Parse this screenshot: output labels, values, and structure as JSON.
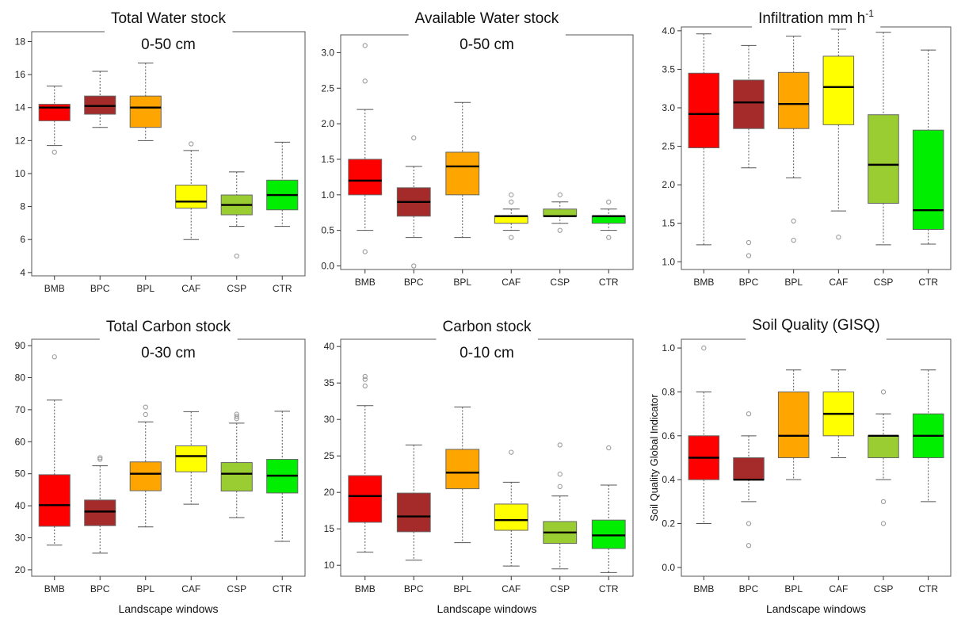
{
  "chart_data": [
    {
      "type": "boxplot",
      "title": "Total Water stock",
      "subtitle": "0-50 cm",
      "xlabel": "",
      "ylabel": "",
      "ylim": [
        3.8,
        18.6
      ],
      "yticks": [
        4,
        6,
        8,
        10,
        12,
        14,
        16,
        18
      ],
      "categories": [
        "BMB",
        "BPC",
        "BPL",
        "CAF",
        "CSP",
        "CTR"
      ],
      "boxes": [
        {
          "min": 11.7,
          "q1": 13.2,
          "median": 14.0,
          "q3": 14.2,
          "max": 15.3,
          "outliers": [
            11.3
          ]
        },
        {
          "min": 12.8,
          "q1": 13.6,
          "median": 14.1,
          "q3": 14.7,
          "max": 16.2,
          "outliers": []
        },
        {
          "min": 12.0,
          "q1": 12.8,
          "median": 14.0,
          "q3": 14.7,
          "max": 16.7,
          "outliers": []
        },
        {
          "min": 6.0,
          "q1": 7.9,
          "median": 8.3,
          "q3": 9.3,
          "max": 11.4,
          "outliers": [
            11.8
          ]
        },
        {
          "min": 6.8,
          "q1": 7.5,
          "median": 8.1,
          "q3": 8.7,
          "max": 10.1,
          "outliers": [
            5.0
          ]
        },
        {
          "min": 6.8,
          "q1": 7.8,
          "median": 8.7,
          "q3": 9.6,
          "max": 11.9,
          "outliers": []
        }
      ]
    },
    {
      "type": "boxplot",
      "title": "Available Water stock",
      "subtitle": "0-50 cm",
      "xlabel": "",
      "ylabel": "",
      "ylim": [
        -0.05,
        3.25
      ],
      "yticks": [
        "0.0",
        "0.5",
        "1.0",
        "1.5",
        "2.0",
        "2.5",
        "3.0"
      ],
      "categories": [
        "BMB",
        "BPC",
        "BPL",
        "CAF",
        "CSP",
        "CTR"
      ],
      "boxes": [
        {
          "min": 0.5,
          "q1": 1.0,
          "median": 1.2,
          "q3": 1.5,
          "max": 2.2,
          "outliers": [
            3.1,
            2.6,
            0.2
          ]
        },
        {
          "min": 0.4,
          "q1": 0.7,
          "median": 0.9,
          "q3": 1.1,
          "max": 1.4,
          "outliers": [
            1.8,
            0.0
          ]
        },
        {
          "min": 0.4,
          "q1": 1.0,
          "median": 1.4,
          "q3": 1.6,
          "max": 2.3,
          "outliers": []
        },
        {
          "min": 0.5,
          "q1": 0.6,
          "median": 0.7,
          "q3": 0.7,
          "max": 0.8,
          "outliers": [
            1.0,
            0.9,
            0.4
          ]
        },
        {
          "min": 0.6,
          "q1": 0.7,
          "median": 0.7,
          "q3": 0.8,
          "max": 0.9,
          "outliers": [
            1.0,
            0.5
          ]
        },
        {
          "min": 0.5,
          "q1": 0.6,
          "median": 0.7,
          "q3": 0.7,
          "max": 0.8,
          "outliers": [
            0.9,
            0.4
          ]
        }
      ]
    },
    {
      "type": "boxplot",
      "title": "Infiltration mm h",
      "title_superscript": "-1",
      "subtitle": "",
      "xlabel": "",
      "ylabel": "",
      "ylim": [
        0.9,
        4.05
      ],
      "yticks": [
        "1.0",
        "1.5",
        "2.0",
        "2.5",
        "3.0",
        "3.5",
        "4.0"
      ],
      "categories": [
        "BMB",
        "BPC",
        "BPL",
        "CAF",
        "CSP",
        "CTR"
      ],
      "boxes": [
        {
          "min": 1.22,
          "q1": 2.48,
          "median": 2.92,
          "q3": 3.45,
          "max": 3.96,
          "outliers": []
        },
        {
          "min": 2.22,
          "q1": 2.73,
          "median": 3.07,
          "q3": 3.36,
          "max": 3.81,
          "outliers": [
            1.25,
            1.08
          ]
        },
        {
          "min": 2.09,
          "q1": 2.73,
          "median": 3.05,
          "q3": 3.46,
          "max": 3.93,
          "outliers": [
            1.53,
            1.28
          ]
        },
        {
          "min": 1.66,
          "q1": 2.78,
          "median": 3.27,
          "q3": 3.67,
          "max": 4.02,
          "outliers": [
            1.32
          ]
        },
        {
          "min": 1.22,
          "q1": 1.76,
          "median": 2.26,
          "q3": 2.91,
          "max": 3.98,
          "outliers": []
        },
        {
          "min": 1.23,
          "q1": 1.42,
          "median": 1.67,
          "q3": 2.71,
          "max": 3.75,
          "outliers": []
        }
      ]
    },
    {
      "type": "boxplot",
      "title": "Total Carbon stock",
      "subtitle": "0-30 cm",
      "xlabel": "Landscape windows",
      "ylabel": "",
      "ylim": [
        18,
        92
      ],
      "yticks": [
        20,
        30,
        40,
        50,
        60,
        70,
        80,
        90
      ],
      "categories": [
        "BMB",
        "BPC",
        "BPL",
        "CAF",
        "CSP",
        "CTR"
      ],
      "boxes": [
        {
          "min": 27.7,
          "q1": 33.6,
          "median": 40.2,
          "q3": 49.7,
          "max": 73.0,
          "outliers": [
            86.5
          ]
        },
        {
          "min": 25.2,
          "q1": 33.8,
          "median": 38.2,
          "q3": 41.8,
          "max": 52.5,
          "outliers": [
            55.0,
            54.5
          ]
        },
        {
          "min": 33.4,
          "q1": 44.7,
          "median": 50.0,
          "q3": 53.7,
          "max": 66.2,
          "outliers": [
            70.8,
            68.5
          ]
        },
        {
          "min": 40.5,
          "q1": 50.6,
          "median": 55.5,
          "q3": 58.7,
          "max": 69.4,
          "outliers": []
        },
        {
          "min": 36.3,
          "q1": 44.6,
          "median": 50.0,
          "q3": 53.5,
          "max": 65.8,
          "outliers": [
            68.6,
            67.9,
            67.2
          ]
        },
        {
          "min": 28.9,
          "q1": 44.0,
          "median": 49.4,
          "q3": 54.5,
          "max": 69.5,
          "outliers": []
        }
      ]
    },
    {
      "type": "boxplot",
      "title": "Carbon stock",
      "subtitle": "0-10 cm",
      "xlabel": "Landscape windows",
      "ylabel": "",
      "ylim": [
        8.5,
        41
      ],
      "yticks": [
        10,
        15,
        20,
        25,
        30,
        35,
        40
      ],
      "categories": [
        "BMB",
        "BPC",
        "BPL",
        "CAF",
        "CSP",
        "CTR"
      ],
      "boxes": [
        {
          "min": 11.8,
          "q1": 15.9,
          "median": 19.5,
          "q3": 22.3,
          "max": 31.9,
          "outliers": [
            35.9,
            35.5,
            34.6
          ]
        },
        {
          "min": 10.7,
          "q1": 14.6,
          "median": 16.7,
          "q3": 19.9,
          "max": 26.5,
          "outliers": []
        },
        {
          "min": 13.1,
          "q1": 20.5,
          "median": 22.7,
          "q3": 25.9,
          "max": 31.7,
          "outliers": []
        },
        {
          "min": 9.9,
          "q1": 14.8,
          "median": 16.2,
          "q3": 18.4,
          "max": 21.4,
          "outliers": [
            25.5
          ]
        },
        {
          "min": 9.5,
          "q1": 13.0,
          "median": 14.5,
          "q3": 16.0,
          "max": 19.5,
          "outliers": [
            26.5,
            22.5,
            20.8
          ]
        },
        {
          "min": 9.0,
          "q1": 12.3,
          "median": 14.1,
          "q3": 16.2,
          "max": 21.0,
          "outliers": [
            26.1
          ]
        }
      ]
    },
    {
      "type": "boxplot",
      "title": "Soil Quality (GISQ)",
      "subtitle": "",
      "xlabel": "Landscape windows",
      "ylabel": "Soil Quality Global Indicator",
      "ylim": [
        -0.04,
        1.04
      ],
      "yticks": [
        "0.0",
        "0.2",
        "0.4",
        "0.6",
        "0.8",
        "1.0"
      ],
      "categories": [
        "BMB",
        "BPC",
        "BPL",
        "CAF",
        "CSP",
        "CTR"
      ],
      "boxes": [
        {
          "min": 0.2,
          "q1": 0.4,
          "median": 0.5,
          "q3": 0.6,
          "max": 0.8,
          "outliers": [
            1.0
          ]
        },
        {
          "min": 0.3,
          "q1": 0.4,
          "median": 0.4,
          "q3": 0.5,
          "max": 0.6,
          "outliers": [
            0.7,
            0.2,
            0.1
          ]
        },
        {
          "min": 0.4,
          "q1": 0.5,
          "median": 0.6,
          "q3": 0.8,
          "max": 0.9,
          "outliers": []
        },
        {
          "min": 0.5,
          "q1": 0.6,
          "median": 0.7,
          "q3": 0.8,
          "max": 0.9,
          "outliers": []
        },
        {
          "min": 0.4,
          "q1": 0.5,
          "median": 0.6,
          "q3": 0.6,
          "max": 0.7,
          "outliers": [
            0.8,
            0.3,
            0.2
          ]
        },
        {
          "min": 0.3,
          "q1": 0.5,
          "median": 0.6,
          "q3": 0.7,
          "max": 0.9,
          "outliers": []
        }
      ]
    }
  ],
  "colors": {
    "BMB": "#ff0000",
    "BPC": "#a52a2a",
    "BPL": "#ffa500",
    "CAF": "#ffff00",
    "CSP": "#9acd32",
    "CTR": "#00ee00",
    "outlier": "#9a9a9a",
    "frame": "#555555"
  }
}
